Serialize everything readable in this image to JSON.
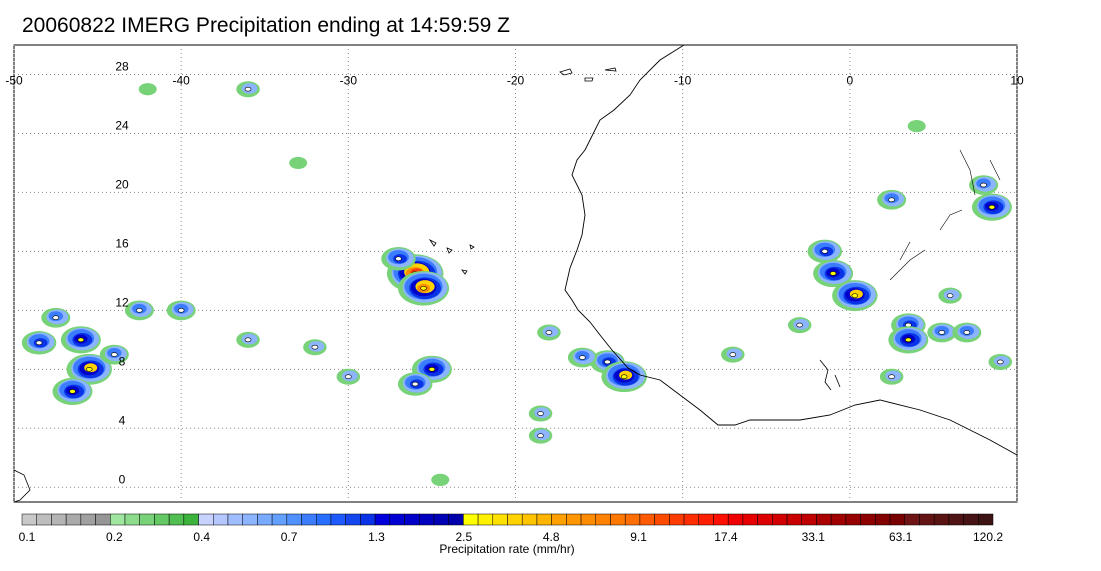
{
  "title": "20060822 IMERG Precipitation ending at 14:59:59 Z",
  "map": {
    "lon_range": [
      -50,
      10
    ],
    "lat_range": [
      -1,
      30
    ],
    "lon_ticks": [
      {
        "value": -50,
        "label": "-50"
      },
      {
        "value": -40,
        "label": "-40"
      },
      {
        "value": -30,
        "label": "-30"
      },
      {
        "value": -20,
        "label": "-20"
      },
      {
        "value": -10,
        "label": "-10"
      },
      {
        "value": 0,
        "label": "0"
      },
      {
        "value": 10,
        "label": "10"
      }
    ],
    "lat_ticks": [
      {
        "value": 28,
        "label": "28"
      },
      {
        "value": 24,
        "label": "24"
      },
      {
        "value": 20,
        "label": "20"
      },
      {
        "value": 16,
        "label": "16"
      },
      {
        "value": 12,
        "label": "12"
      },
      {
        "value": 8,
        "label": "8"
      },
      {
        "value": 4,
        "label": "4"
      },
      {
        "value": 0,
        "label": "0"
      }
    ],
    "gridlines": true
  },
  "colorbar": {
    "label": "Precipitation rate (mm/hr)",
    "tick_labels": [
      "0.1",
      "0.2",
      "0.4",
      "0.7",
      "1.3",
      "2.5",
      "4.8",
      "9.1",
      "17.4",
      "33.1",
      "63.1",
      "120.2"
    ],
    "colors": [
      "#c8c8c8",
      "#bebebe",
      "#b4b4b4",
      "#aaaaaa",
      "#a0a0a0",
      "#969696",
      "#a0e6a0",
      "#8cdc8c",
      "#78d278",
      "#64c864",
      "#50be50",
      "#3cb43c",
      "#c8d2ff",
      "#b4c8ff",
      "#a0beff",
      "#8cb4ff",
      "#78aaff",
      "#64a0ff",
      "#5090ff",
      "#3c7dff",
      "#286eff",
      "#1e5aff",
      "#1446f0",
      "#0a32e6",
      "#0000dc",
      "#0000d2",
      "#0000c8",
      "#0000be",
      "#0000b4",
      "#0000aa",
      "#ffff00",
      "#fff000",
      "#ffe100",
      "#ffd200",
      "#ffc300",
      "#ffb400",
      "#ffa000",
      "#ff9600",
      "#ff8c00",
      "#ff8200",
      "#ff7800",
      "#ff6e00",
      "#ff5a00",
      "#ff4b00",
      "#ff3c00",
      "#ff2d00",
      "#ff1e00",
      "#ff0f00",
      "#f00000",
      "#e60000",
      "#dc0000",
      "#d20000",
      "#c80000",
      "#be0000",
      "#aa0000",
      "#a00000",
      "#960000",
      "#8c0000",
      "#820000",
      "#780000",
      "#6e1414",
      "#641414",
      "#5a1414",
      "#501414",
      "#461414",
      "#3c1414"
    ]
  },
  "precip_cells": [
    {
      "lon": -48.5,
      "lat": 9.8,
      "intensity": 4
    },
    {
      "lon": -46.0,
      "lat": 10.0,
      "intensity": 5
    },
    {
      "lon": -45.5,
      "lat": 8.0,
      "intensity": 6
    },
    {
      "lon": -46.5,
      "lat": 6.5,
      "intensity": 5
    },
    {
      "lon": -47.5,
      "lat": 11.5,
      "intensity": 3
    },
    {
      "lon": -42.5,
      "lat": 12.0,
      "intensity": 3
    },
    {
      "lon": -40.0,
      "lat": 12.0,
      "intensity": 3
    },
    {
      "lon": -44.0,
      "lat": 9.0,
      "intensity": 3
    },
    {
      "lon": -36.0,
      "lat": 10.0,
      "intensity": 2
    },
    {
      "lon": -26.0,
      "lat": 14.5,
      "intensity": 8
    },
    {
      "lon": -25.5,
      "lat": 13.5,
      "intensity": 7
    },
    {
      "lon": -27.0,
      "lat": 15.5,
      "intensity": 4
    },
    {
      "lon": -25.0,
      "lat": 8.0,
      "intensity": 5
    },
    {
      "lon": -26.0,
      "lat": 7.0,
      "intensity": 4
    },
    {
      "lon": -30.0,
      "lat": 7.5,
      "intensity": 2
    },
    {
      "lon": -32.0,
      "lat": 9.5,
      "intensity": 2
    },
    {
      "lon": -18.0,
      "lat": 10.5,
      "intensity": 2
    },
    {
      "lon": -18.5,
      "lat": 5.0,
      "intensity": 2
    },
    {
      "lon": -14.5,
      "lat": 8.5,
      "intensity": 4
    },
    {
      "lon": -13.5,
      "lat": 7.5,
      "intensity": 6
    },
    {
      "lon": -16.0,
      "lat": 8.8,
      "intensity": 3
    },
    {
      "lon": -7.0,
      "lat": 9.0,
      "intensity": 2
    },
    {
      "lon": -3.0,
      "lat": 11.0,
      "intensity": 2
    },
    {
      "lon": -1.5,
      "lat": 16.0,
      "intensity": 4
    },
    {
      "lon": -1.0,
      "lat": 14.5,
      "intensity": 5
    },
    {
      "lon": 0.3,
      "lat": 13.0,
      "intensity": 6
    },
    {
      "lon": 3.5,
      "lat": 11.0,
      "intensity": 4
    },
    {
      "lon": 3.5,
      "lat": 10.0,
      "intensity": 5
    },
    {
      "lon": 5.5,
      "lat": 10.5,
      "intensity": 3
    },
    {
      "lon": 7.0,
      "lat": 10.5,
      "intensity": 3
    },
    {
      "lon": 2.5,
      "lat": 19.5,
      "intensity": 3
    },
    {
      "lon": 8.5,
      "lat": 19.0,
      "intensity": 5
    },
    {
      "lon": 8.0,
      "lat": 20.5,
      "intensity": 3
    },
    {
      "lon": 9.0,
      "lat": 8.5,
      "intensity": 2
    },
    {
      "lon": 2.5,
      "lat": 7.5,
      "intensity": 2
    },
    {
      "lon": -36.0,
      "lat": 27.0,
      "intensity": 2
    },
    {
      "lon": -42.0,
      "lat": 27.0,
      "intensity": 1
    },
    {
      "lon": -24.5,
      "lat": 0.5,
      "intensity": 1
    },
    {
      "lon": -33.0,
      "lat": 22.0,
      "intensity": 1
    },
    {
      "lon": -18.5,
      "lat": 3.5,
      "intensity": 2
    },
    {
      "lon": 6.0,
      "lat": 13.0,
      "intensity": 2
    },
    {
      "lon": 4.0,
      "lat": 24.5,
      "intensity": 1
    }
  ]
}
